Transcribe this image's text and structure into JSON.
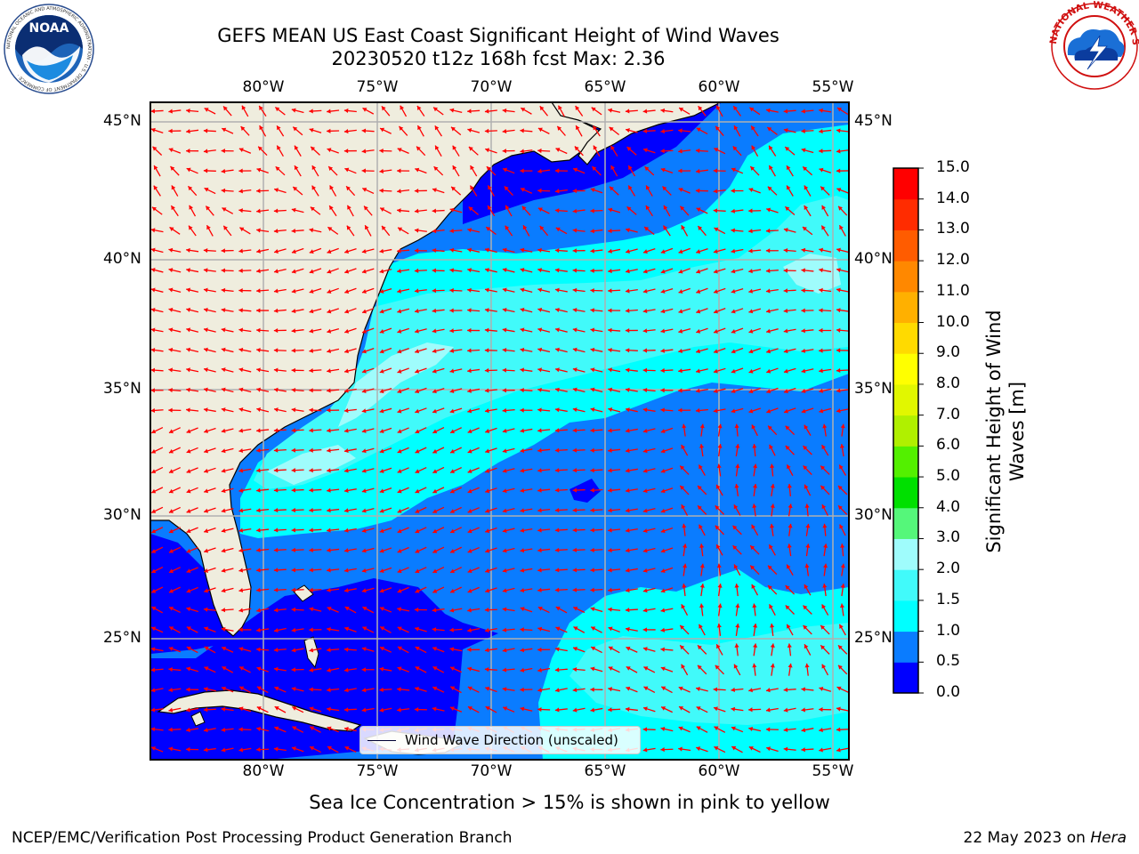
{
  "title_line1": "GEFS MEAN US East Coast Significant Height of Wind Waves",
  "title_line2": "20230520 t12z 168h fcst   Max: 2.36",
  "map": {
    "lon_ticks": [
      "80°W",
      "75°W",
      "70°W",
      "65°W",
      "60°W",
      "55°W"
    ],
    "lat_ticks": [
      "45°N",
      "40°N",
      "35°N",
      "30°N",
      "25°N"
    ],
    "lon_range": [
      -85,
      -54
    ],
    "lat_range": [
      20.5,
      46.2
    ],
    "gridlines": true,
    "land_color": "#efedde",
    "vector_color": "#ff0000"
  },
  "colorbar": {
    "title": "Significant Height of Wind Waves [m]",
    "ticks": [
      "0.0",
      "0.5",
      "1.0",
      "1.5",
      "2.0",
      "3.0",
      "4.0",
      "5.0",
      "6.0",
      "7.0",
      "8.0",
      "9.0",
      "10.0",
      "11.0",
      "12.0",
      "13.0",
      "14.0",
      "15.0"
    ],
    "colors": [
      "#0000ff",
      "#0a7cff",
      "#00ffff",
      "#41fafa",
      "#9ffcfc",
      "#55f77a",
      "#00e000",
      "#53f000",
      "#b0f000",
      "#e1f700",
      "#ffff00",
      "#ffda00",
      "#ffb000",
      "#ff8800",
      "#ff5c00",
      "#ff2c00",
      "#ff0000"
    ]
  },
  "legend_text": "Wind Wave Direction (unscaled)",
  "note": "Sea Ice Concentration > 15% is shown in pink to yellow",
  "footer_left": "NCEP/EMC/Verification Post Processing Product Generation Branch",
  "footer_date": "22 May 2023 on",
  "footer_host": "Hera",
  "logos": {
    "noaa_text": "NOAA",
    "noaa_ring": "NATIONAL OCEANIC AND ATMOSPHERIC ADMINISTRATION · U.S. DEPARTMENT OF COMMERCE ·",
    "nws_ring": "NATIONAL WEATHER SERVICE"
  }
}
